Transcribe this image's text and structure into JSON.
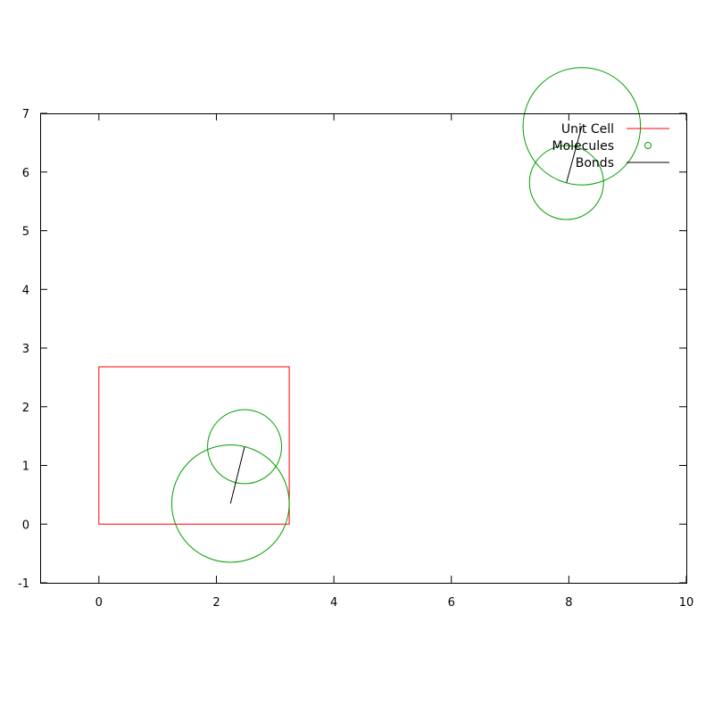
{
  "chart_data": {
    "type": "scatter",
    "xlim": [
      -1,
      10
    ],
    "ylim": [
      -1,
      7
    ],
    "x_ticks": [
      "0",
      "2",
      "4",
      "6",
      "8",
      "10"
    ],
    "y_ticks": [
      "-1",
      "0",
      "1",
      "2",
      "3",
      "4",
      "5",
      "6",
      "7"
    ],
    "grid": false,
    "legend_position": "top-right",
    "legend": [
      {
        "label": "Unit Cell",
        "color": "#ff0000"
      },
      {
        "label": "Molecules",
        "color": "#00a000"
      },
      {
        "label": "Bonds",
        "color": "#000000"
      }
    ],
    "series": [
      {
        "name": "Unit Cell",
        "kind": "polygon",
        "color": "#ff0000",
        "points": [
          [
            0,
            0
          ],
          [
            3.24,
            0
          ],
          [
            3.24,
            2.68
          ],
          [
            0,
            2.68
          ]
        ]
      },
      {
        "name": "Molecules",
        "kind": "circles",
        "color": "#00a000",
        "circles": [
          {
            "x": 2.24,
            "y": 0.35,
            "r": 1.0
          },
          {
            "x": 2.48,
            "y": 1.32,
            "r": 0.63
          },
          {
            "x": 8.22,
            "y": 6.78,
            "r": 1.0
          },
          {
            "x": 7.96,
            "y": 5.82,
            "r": 0.63
          }
        ]
      },
      {
        "name": "Bonds",
        "kind": "segments",
        "color": "#000000",
        "segments": [
          [
            [
              2.24,
              0.35
            ],
            [
              2.48,
              1.32
            ]
          ],
          [
            [
              7.96,
              5.82
            ],
            [
              8.22,
              6.78
            ]
          ]
        ]
      }
    ]
  }
}
